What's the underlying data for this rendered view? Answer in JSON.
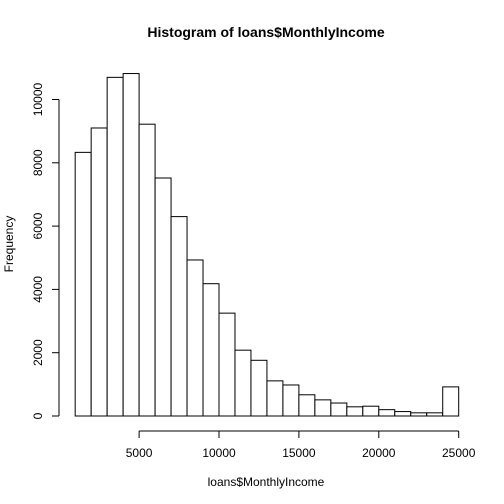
{
  "chart_data": {
    "type": "bar",
    "title": "Histogram of loans$MonthlyIncome",
    "xlabel": "loans$MonthlyIncome",
    "ylabel": "Frequency",
    "bin_width": 1000,
    "bins": [
      {
        "x0": 0,
        "x1": 1000,
        "count": 0
      },
      {
        "x0": 1000,
        "x1": 2000,
        "count": 8330
      },
      {
        "x0": 2000,
        "x1": 3000,
        "count": 9100
      },
      {
        "x0": 3000,
        "x1": 4000,
        "count": 10700
      },
      {
        "x0": 4000,
        "x1": 5000,
        "count": 10820
      },
      {
        "x0": 5000,
        "x1": 6000,
        "count": 9220
      },
      {
        "x0": 6000,
        "x1": 7000,
        "count": 7520
      },
      {
        "x0": 7000,
        "x1": 8000,
        "count": 6300
      },
      {
        "x0": 8000,
        "x1": 9000,
        "count": 4930
      },
      {
        "x0": 9000,
        "x1": 10000,
        "count": 4180
      },
      {
        "x0": 10000,
        "x1": 11000,
        "count": 3250
      },
      {
        "x0": 11000,
        "x1": 12000,
        "count": 2080
      },
      {
        "x0": 12000,
        "x1": 13000,
        "count": 1760
      },
      {
        "x0": 13000,
        "x1": 14000,
        "count": 1110
      },
      {
        "x0": 14000,
        "x1": 15000,
        "count": 980
      },
      {
        "x0": 15000,
        "x1": 16000,
        "count": 670
      },
      {
        "x0": 16000,
        "x1": 17000,
        "count": 510
      },
      {
        "x0": 17000,
        "x1": 18000,
        "count": 410
      },
      {
        "x0": 18000,
        "x1": 19000,
        "count": 290
      },
      {
        "x0": 19000,
        "x1": 20000,
        "count": 310
      },
      {
        "x0": 20000,
        "x1": 21000,
        "count": 200
      },
      {
        "x0": 21000,
        "x1": 22000,
        "count": 140
      },
      {
        "x0": 22000,
        "x1": 23000,
        "count": 100
      },
      {
        "x0": 23000,
        "x1": 24000,
        "count": 100
      },
      {
        "x0": 24000,
        "x1": 25000,
        "count": 920
      }
    ],
    "xlim": [
      0,
      25000
    ],
    "ylim": [
      0,
      10820
    ],
    "x_ticks": [
      5000,
      10000,
      15000,
      20000,
      25000
    ],
    "y_ticks": [
      0,
      2000,
      4000,
      6000,
      8000,
      10000
    ],
    "x_tick_labels": [
      "5000",
      "10000",
      "15000",
      "20000",
      "25000"
    ],
    "y_tick_labels": [
      "0",
      "2000",
      "4000",
      "6000",
      "8000",
      "10000"
    ],
    "grid": false,
    "legend": "none"
  }
}
